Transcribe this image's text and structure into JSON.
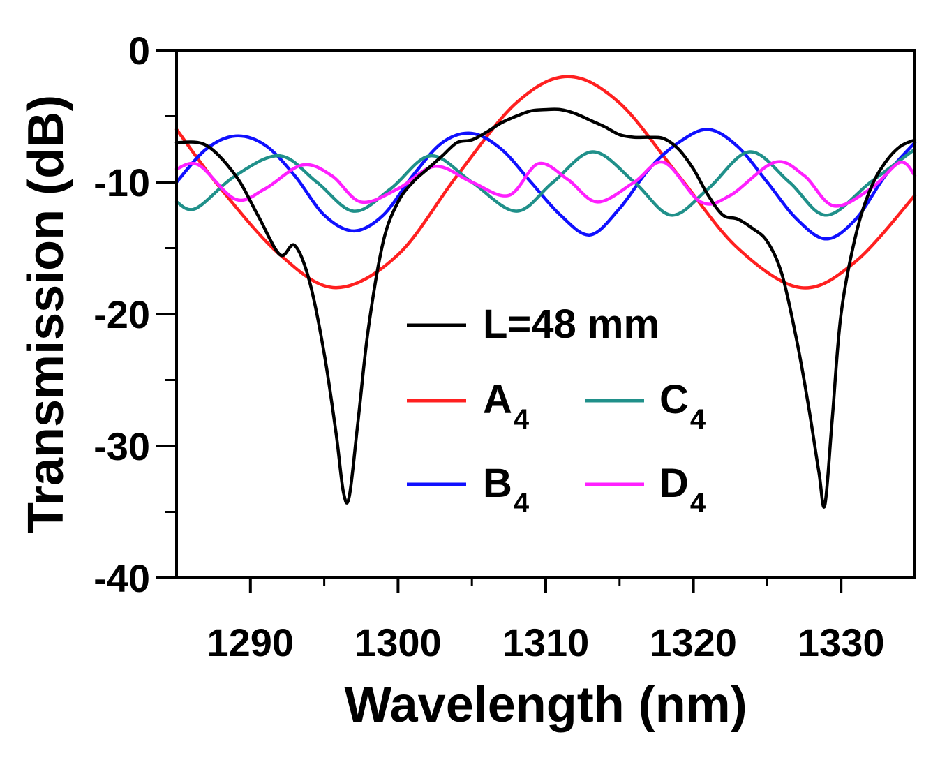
{
  "chart_data": {
    "type": "line",
    "title": "",
    "xlabel": "Wavelength (nm)",
    "ylabel": "Transmission (dB)",
    "xlim": [
      1285,
      1335
    ],
    "ylim": [
      -40,
      0
    ],
    "xticks": [
      1290,
      1300,
      1310,
      1320,
      1330
    ],
    "yticks": [
      0,
      -10,
      -20,
      -30,
      -40
    ],
    "xtick_labels": [
      "1290",
      "1300",
      "1310",
      "1320",
      "1330"
    ],
    "ytick_labels": [
      "0",
      "-10",
      "-20",
      "-30",
      "-40"
    ],
    "grid": false,
    "legend_position": "center",
    "series": [
      {
        "name": "L=48 mm",
        "legend_main": "L=48 mm",
        "legend_sub": "",
        "color": "#000000",
        "x": [
          1285,
          1287,
          1289,
          1290.5,
          1292,
          1293,
          1294,
          1295,
          1295.8,
          1296.3,
          1296.7,
          1297.3,
          1298,
          1299,
          1300,
          1301,
          1302,
          1303,
          1304,
          1305,
          1306,
          1307,
          1308,
          1309,
          1310,
          1311,
          1312,
          1313,
          1314,
          1315,
          1316,
          1317,
          1318,
          1319,
          1320,
          1321,
          1322,
          1323,
          1324,
          1325,
          1326,
          1327,
          1327.8,
          1328.5,
          1328.9,
          1329.4,
          1330,
          1331,
          1332,
          1333,
          1334,
          1335
        ],
        "values": [
          -7.0,
          -7.2,
          -9.5,
          -12.5,
          -15.5,
          -14.8,
          -17.5,
          -23,
          -29,
          -33.5,
          -33.8,
          -28,
          -21,
          -14.5,
          -11.5,
          -10,
          -9,
          -8,
          -7,
          -6.8,
          -6.2,
          -5.5,
          -5,
          -4.6,
          -4.5,
          -4.5,
          -4.8,
          -5.3,
          -5.8,
          -6.4,
          -6.6,
          -6.6,
          -6.7,
          -7.5,
          -9,
          -11,
          -12.5,
          -12.8,
          -13.5,
          -14.5,
          -17,
          -22,
          -27,
          -32,
          -34.5,
          -28,
          -20,
          -14,
          -10.5,
          -8.5,
          -7.3,
          -6.8
        ]
      },
      {
        "name": "A4",
        "legend_main": "A",
        "legend_sub": "4",
        "color": "#ff2020",
        "x": [
          1285,
          1288,
          1292,
          1295.8,
          1300,
          1304,
          1308,
          1311.5,
          1315,
          1319,
          1323,
          1327.3,
          1331,
          1335
        ],
        "values": [
          -6.0,
          -10.5,
          -15.5,
          -18.0,
          -15.5,
          -9.5,
          -4.0,
          -2.0,
          -4.0,
          -9.5,
          -15.0,
          -18.0,
          -16.0,
          -11.0
        ]
      },
      {
        "name": "B4",
        "legend_main": "B",
        "legend_sub": "4",
        "color": "#1010ff",
        "x": [
          1285,
          1287,
          1289,
          1291,
          1293,
          1295,
          1297,
          1299,
          1301,
          1303,
          1305,
          1307,
          1309,
          1311,
          1313,
          1315,
          1317,
          1319,
          1321,
          1323,
          1325,
          1327,
          1329,
          1331,
          1333,
          1335
        ],
        "values": [
          -10.0,
          -7.5,
          -6.5,
          -7.2,
          -9.5,
          -12.5,
          -13.7,
          -12.5,
          -9.5,
          -7.0,
          -6.3,
          -7.5,
          -10.0,
          -12.5,
          -14.0,
          -12.0,
          -9.0,
          -7.0,
          -6.0,
          -7.3,
          -10.0,
          -12.8,
          -14.3,
          -12.8,
          -9.5,
          -7.0
        ]
      },
      {
        "name": "C4",
        "legend_main": "C",
        "legend_sub": "4",
        "color": "#20908a",
        "x": [
          1285,
          1286.3,
          1289,
          1292,
          1294.5,
          1297,
          1299.5,
          1302.2,
          1305,
          1308,
          1310.5,
          1313.2,
          1316,
          1318.5,
          1321,
          1323.8,
          1326.5,
          1329,
          1332,
          1335
        ],
        "values": [
          -11.5,
          -12.0,
          -9.5,
          -8.0,
          -10.0,
          -12.2,
          -10.5,
          -8.0,
          -10.0,
          -12.2,
          -10.0,
          -7.7,
          -10.0,
          -12.5,
          -10.5,
          -7.7,
          -10.0,
          -12.5,
          -10.0,
          -7.5
        ]
      },
      {
        "name": "D4",
        "legend_main": "D",
        "legend_sub": "4",
        "color": "#ff20ff",
        "x": [
          1285,
          1286.5,
          1289,
          1291,
          1293.5,
          1295.5,
          1297.5,
          1300,
          1302.5,
          1305,
          1307.5,
          1309.5,
          1311.5,
          1313.5,
          1316,
          1318,
          1320.5,
          1322.5,
          1325.5,
          1327.5,
          1329.5,
          1332,
          1334,
          1335
        ],
        "values": [
          -9.0,
          -8.7,
          -11.3,
          -10.5,
          -8.7,
          -9.5,
          -11.5,
          -10.5,
          -8.8,
          -10.0,
          -11.0,
          -8.6,
          -9.8,
          -11.5,
          -10.0,
          -8.5,
          -11.5,
          -11.0,
          -8.5,
          -9.5,
          -11.8,
          -10.5,
          -8.5,
          -9.5
        ]
      }
    ]
  }
}
